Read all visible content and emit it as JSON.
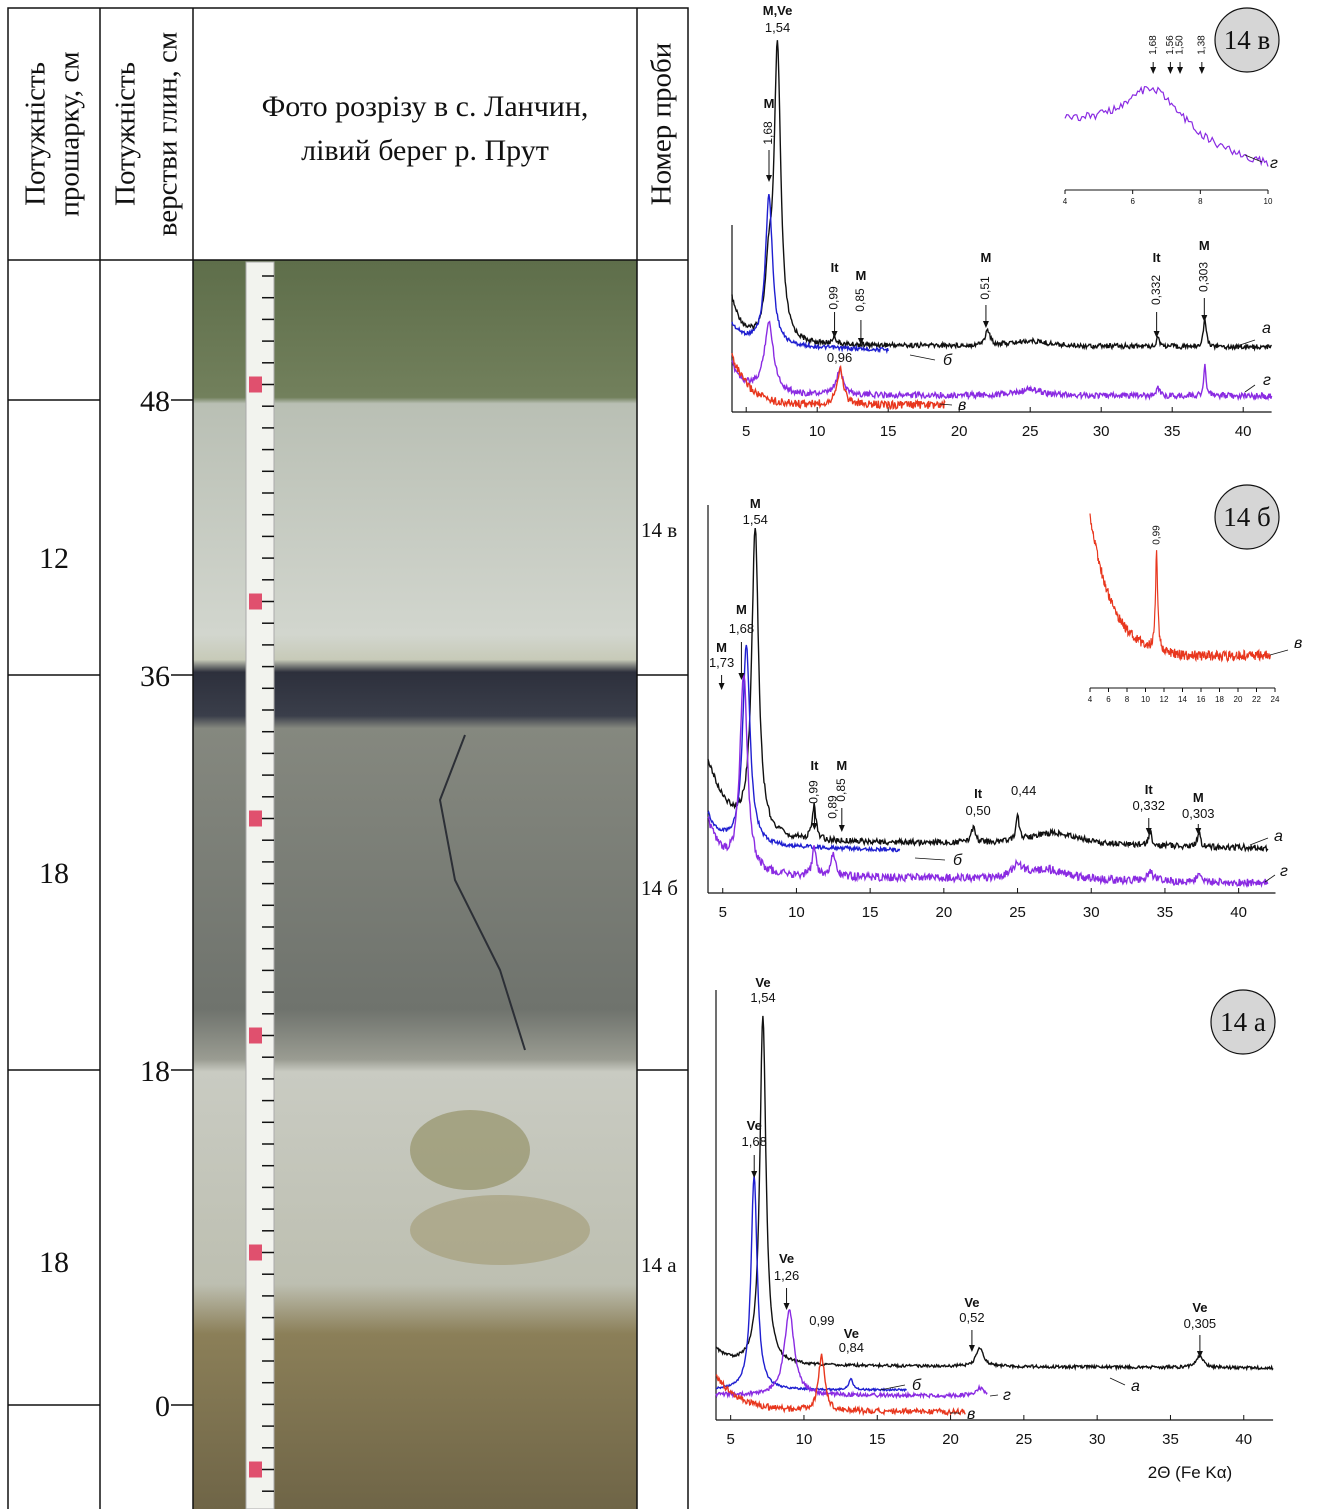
{
  "table": {
    "headers": [
      [
        "Потужність",
        "прошарку, см"
      ],
      [
        "Потужність",
        "верстви глин, см"
      ],
      [
        "Фото розрізу в с. Ланчин,",
        "лівий берег р. Прут"
      ],
      [
        "Номер проби"
      ]
    ],
    "thickness": [
      12,
      18,
      18
    ],
    "depth_ticks": [
      48,
      36,
      18,
      0
    ],
    "samples": [
      "14 в",
      "14 б",
      "14 а"
    ]
  },
  "diffractograms": [
    {
      "badge": "14 в",
      "xticks": [
        5,
        10,
        15,
        20,
        25,
        30,
        35,
        40
      ],
      "peaks": [
        {
          "mineral": "M,Ve",
          "d": "1,54"
        },
        {
          "mineral": "M",
          "d": "1,68"
        },
        {
          "mineral": "It",
          "d": "0,99"
        },
        {
          "mineral": "M",
          "d": "0,85"
        },
        {
          "mineral": "M",
          "d": "0,51"
        },
        {
          "mineral": "It",
          "d": "0,332"
        },
        {
          "mineral": "M",
          "d": "0,303"
        },
        {
          "d": "0,96"
        }
      ],
      "curves": [
        "а",
        "б",
        "г",
        "в"
      ],
      "inset": {
        "xticks": [
          4,
          6,
          8,
          10
        ],
        "peaks": [
          "1,68",
          "1,56",
          "1,50",
          "1,38"
        ],
        "curve": "г"
      }
    },
    {
      "badge": "14 б",
      "xticks": [
        5,
        10,
        15,
        20,
        25,
        30,
        35,
        40
      ],
      "peaks": [
        {
          "mineral": "M",
          "d": "1,54"
        },
        {
          "mineral": "M",
          "d": "1,68"
        },
        {
          "mineral": "M",
          "d": "1,73"
        },
        {
          "mineral": "It",
          "d": "0,99"
        },
        {
          "d": "0,89"
        },
        {
          "mineral": "M",
          "d": "0,85"
        },
        {
          "mineral": "It",
          "d": "0,50"
        },
        {
          "d": "0,44"
        },
        {
          "mineral": "It",
          "d": "0,332"
        },
        {
          "mineral": "M",
          "d": "0,303"
        }
      ],
      "curves": [
        "а",
        "б",
        "г"
      ],
      "inset": {
        "xticks": [
          4,
          6,
          8,
          10,
          12,
          14,
          16,
          18,
          20,
          22,
          24
        ],
        "peaks": [
          "0,99"
        ],
        "curve": "в"
      }
    },
    {
      "badge": "14 а",
      "xticks": [
        5,
        10,
        15,
        20,
        25,
        30,
        35,
        40
      ],
      "peaks": [
        {
          "mineral": "Ve",
          "d": "1,54"
        },
        {
          "mineral": "Ve",
          "d": "1,68"
        },
        {
          "mineral": "Ve",
          "d": "1,26"
        },
        {
          "d": "0,99"
        },
        {
          "mineral": "Ve",
          "d": "0,84"
        },
        {
          "mineral": "Ve",
          "d": "0,52"
        },
        {
          "mineral": "Ve",
          "d": "0,305"
        }
      ],
      "curves": [
        "а",
        "б",
        "г",
        "в"
      ]
    }
  ],
  "x_axis_label": "2Θ (Fe Kα)"
}
